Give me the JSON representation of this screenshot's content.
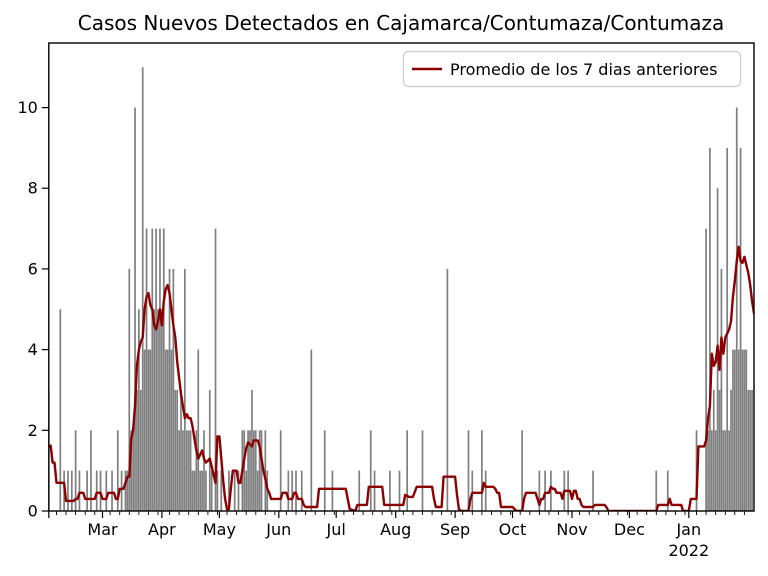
{
  "figure": {
    "title": "Casos Nuevos Detectados en Cajamarca/Contumaza/Contumaza"
  },
  "chart_data": {
    "type": "bar",
    "title": "Casos Nuevos Detectados en Cajamarca/Contumaza/Contumaza",
    "legend": {
      "label": "Promedio de los 7 dias anteriores",
      "position": "upper right",
      "line_color": "#8B0000"
    },
    "bar_color": "#7f7f7f",
    "axis_color": "#000000",
    "x_unit": "days",
    "x_axis_note": "daily bars, left edge = early Feb 2021, right edge = early Feb 2022",
    "x_total_days": 368,
    "ylim": [
      0,
      11.6
    ],
    "yticks": [
      0,
      2,
      4,
      6,
      8,
      10
    ],
    "grid": false,
    "month_start_days": [
      0,
      28,
      59,
      89,
      120,
      150,
      181,
      212,
      242,
      273,
      303,
      334,
      365
    ],
    "month_ticks": [
      {
        "day": 28,
        "label": "Mar"
      },
      {
        "day": 59,
        "label": "Apr"
      },
      {
        "day": 89,
        "label": "May"
      },
      {
        "day": 120,
        "label": "Jun"
      },
      {
        "day": 150,
        "label": "Jul"
      },
      {
        "day": 181,
        "label": "Aug"
      },
      {
        "day": 212,
        "label": "Sep"
      },
      {
        "day": 242,
        "label": "Oct"
      },
      {
        "day": 273,
        "label": "Nov"
      },
      {
        "day": 303,
        "label": "Dec"
      },
      {
        "day": 334,
        "label": "Jan",
        "sublabel": "2022"
      }
    ],
    "minor_tick_day_offsets": [
      4,
      9,
      14,
      19,
      24,
      29
    ],
    "bars_daily_cases": {
      "0": 3,
      "6": 5,
      "8": 1,
      "10": 1,
      "12": 1,
      "14": 2,
      "16": 1,
      "20": 1,
      "22": 2,
      "25": 1,
      "27": 1,
      "30": 1,
      "33": 1,
      "36": 2,
      "38": 1,
      "40": 1,
      "41": 1,
      "42": 6,
      "43": 2,
      "44": 2,
      "45": 10,
      "46": 3,
      "47": 5,
      "48": 3,
      "49": 11,
      "50": 4,
      "51": 7,
      "52": 4,
      "53": 4,
      "54": 7,
      "55": 5,
      "56": 7,
      "57": 5,
      "58": 7,
      "59": 5,
      "60": 7,
      "61": 4,
      "62": 4,
      "63": 6,
      "64": 4,
      "65": 6,
      "66": 3,
      "67": 3,
      "68": 2,
      "69": 3,
      "70": 2,
      "71": 6,
      "72": 2,
      "73": 2,
      "74": 2,
      "75": 1,
      "76": 1,
      "77": 2,
      "78": 4,
      "79": 1,
      "80": 1,
      "81": 2,
      "82": 1,
      "84": 3,
      "85": 1,
      "87": 7,
      "88": 1,
      "90": 1,
      "94": 1,
      "97": 1,
      "99": 1,
      "101": 2,
      "102": 2,
      "103": 1,
      "104": 2,
      "105": 2,
      "106": 3,
      "107": 2,
      "108": 2,
      "109": 1,
      "110": 2,
      "111": 2,
      "113": 2,
      "114": 1,
      "121": 2,
      "125": 1,
      "127": 1,
      "129": 1,
      "132": 1,
      "137": 4,
      "144": 2,
      "148": 1,
      "162": 1,
      "168": 2,
      "170": 1,
      "178": 1,
      "183": 1,
      "187": 2,
      "195": 2,
      "208": 6,
      "219": 2,
      "221": 1,
      "226": 2,
      "228": 1,
      "247": 2,
      "256": 1,
      "259": 1,
      "262": 1,
      "269": 1,
      "271": 1,
      "284": 1,
      "317": 1,
      "323": 1,
      "338": 2,
      "343": 7,
      "344": 2,
      "345": 9,
      "346": 2,
      "347": 3,
      "348": 2,
      "349": 8,
      "350": 3,
      "351": 6,
      "352": 2,
      "353": 2,
      "354": 9,
      "355": 2,
      "356": 3,
      "357": 4,
      "358": 4,
      "359": 10,
      "360": 4,
      "361": 9,
      "362": 4,
      "363": 4,
      "364": 4,
      "365": 3,
      "366": 3,
      "367": 3
    },
    "avg_7day_line": [
      [
        0,
        1.6
      ],
      [
        1,
        1.62
      ],
      [
        2,
        1.2
      ],
      [
        3,
        1.2
      ],
      [
        4,
        0.7
      ],
      [
        8,
        0.7
      ],
      [
        9,
        0.25
      ],
      [
        13,
        0.25
      ],
      [
        14,
        0.3
      ],
      [
        15,
        0.3
      ],
      [
        16,
        0.45
      ],
      [
        18,
        0.45
      ],
      [
        19,
        0.3
      ],
      [
        24,
        0.3
      ],
      [
        25,
        0.45
      ],
      [
        27,
        0.45
      ],
      [
        28,
        0.3
      ],
      [
        30,
        0.3
      ],
      [
        31,
        0.45
      ],
      [
        34,
        0.45
      ],
      [
        35,
        0.3
      ],
      [
        36,
        0.3
      ],
      [
        37,
        0.55
      ],
      [
        39,
        0.55
      ],
      [
        40,
        0.7
      ],
      [
        41,
        0.85
      ],
      [
        42,
        0.85
      ],
      [
        43,
        1.8
      ],
      [
        44,
        2.0
      ],
      [
        45,
        2.6
      ],
      [
        46,
        3.6
      ],
      [
        47,
        4.0
      ],
      [
        48,
        4.2
      ],
      [
        49,
        4.3
      ],
      [
        50,
        5.0
      ],
      [
        51,
        5.3
      ],
      [
        52,
        5.4
      ],
      [
        53,
        5.1
      ],
      [
        54,
        5.0
      ],
      [
        55,
        4.6
      ],
      [
        56,
        4.5
      ],
      [
        57,
        4.7
      ],
      [
        58,
        5.0
      ],
      [
        59,
        4.6
      ],
      [
        60,
        5.2
      ],
      [
        61,
        5.5
      ],
      [
        62,
        5.6
      ],
      [
        63,
        5.4
      ],
      [
        64,
        5.0
      ],
      [
        65,
        4.6
      ],
      [
        66,
        4.3
      ],
      [
        67,
        3.7
      ],
      [
        68,
        3.3
      ],
      [
        69,
        2.9
      ],
      [
        70,
        2.6
      ],
      [
        71,
        2.3
      ],
      [
        72,
        2.4
      ],
      [
        73,
        2.3
      ],
      [
        74,
        2.3
      ],
      [
        75,
        2.1
      ],
      [
        76,
        1.8
      ],
      [
        77,
        1.5
      ],
      [
        78,
        1.3
      ],
      [
        79,
        1.4
      ],
      [
        80,
        1.5
      ],
      [
        81,
        1.3
      ],
      [
        82,
        1.2
      ],
      [
        84,
        1.3
      ],
      [
        85,
        1.1
      ],
      [
        86,
        0.9
      ],
      [
        87,
        0.7
      ],
      [
        88,
        1.85
      ],
      [
        89,
        1.85
      ],
      [
        90,
        1.3
      ],
      [
        91,
        0.75
      ],
      [
        92,
        0.3
      ],
      [
        93,
        0.05
      ],
      [
        94,
        0.05
      ],
      [
        95,
        0.55
      ],
      [
        96,
        1.0
      ],
      [
        98,
        1.0
      ],
      [
        99,
        0.7
      ],
      [
        100,
        0.7
      ],
      [
        101,
        1.0
      ],
      [
        102,
        1.3
      ],
      [
        103,
        1.55
      ],
      [
        104,
        1.7
      ],
      [
        106,
        1.6
      ],
      [
        107,
        1.75
      ],
      [
        109,
        1.75
      ],
      [
        110,
        1.6
      ],
      [
        111,
        1.3
      ],
      [
        112,
        1.0
      ],
      [
        113,
        0.8
      ],
      [
        114,
        0.55
      ],
      [
        115,
        0.45
      ],
      [
        116,
        0.3
      ],
      [
        121,
        0.3
      ],
      [
        122,
        0.45
      ],
      [
        124,
        0.45
      ],
      [
        125,
        0.3
      ],
      [
        127,
        0.3
      ],
      [
        128,
        0.45
      ],
      [
        129,
        0.45
      ],
      [
        130,
        0.3
      ],
      [
        132,
        0.3
      ],
      [
        133,
        0.15
      ],
      [
        134,
        0.1
      ],
      [
        140,
        0.1
      ],
      [
        141,
        0.55
      ],
      [
        155,
        0.55
      ],
      [
        156,
        0.3
      ],
      [
        157,
        0.05
      ],
      [
        160,
        0
      ],
      [
        161,
        0.15
      ],
      [
        166,
        0.15
      ],
      [
        167,
        0.6
      ],
      [
        174,
        0.6
      ],
      [
        175,
        0.15
      ],
      [
        185,
        0.15
      ],
      [
        186,
        0.4
      ],
      [
        188,
        0.35
      ],
      [
        190,
        0.35
      ],
      [
        192,
        0.6
      ],
      [
        200,
        0.6
      ],
      [
        201,
        0.3
      ],
      [
        202,
        0.1
      ],
      [
        205,
        0.1
      ],
      [
        206,
        0.85
      ],
      [
        212,
        0.85
      ],
      [
        213,
        0.4
      ],
      [
        214,
        0.05
      ],
      [
        215,
        0
      ],
      [
        219,
        0
      ],
      [
        220,
        0.3
      ],
      [
        221,
        0.45
      ],
      [
        226,
        0.45
      ],
      [
        227,
        0.7
      ],
      [
        228,
        0.6
      ],
      [
        232,
        0.6
      ],
      [
        233,
        0.55
      ],
      [
        234,
        0.45
      ],
      [
        235,
        0.45
      ],
      [
        236,
        0.1
      ],
      [
        242,
        0.1
      ],
      [
        243,
        0.05
      ],
      [
        244,
        0
      ],
      [
        247,
        0
      ],
      [
        248,
        0.3
      ],
      [
        249,
        0.45
      ],
      [
        254,
        0.45
      ],
      [
        255,
        0.3
      ],
      [
        256,
        0.15
      ],
      [
        257,
        0.3
      ],
      [
        258,
        0.3
      ],
      [
        259,
        0.45
      ],
      [
        261,
        0.45
      ],
      [
        262,
        0.6
      ],
      [
        263,
        0.55
      ],
      [
        264,
        0.55
      ],
      [
        265,
        0.45
      ],
      [
        267,
        0.45
      ],
      [
        268,
        0.3
      ],
      [
        269,
        0.5
      ],
      [
        272,
        0.5
      ],
      [
        273,
        0.3
      ],
      [
        274,
        0.5
      ],
      [
        275,
        0.5
      ],
      [
        276,
        0.3
      ],
      [
        277,
        0.3
      ],
      [
        278,
        0.15
      ],
      [
        279,
        0.1
      ],
      [
        284,
        0.1
      ],
      [
        285,
        0.15
      ],
      [
        290,
        0.15
      ],
      [
        291,
        0.1
      ],
      [
        292,
        0
      ],
      [
        317,
        0
      ],
      [
        318,
        0.15
      ],
      [
        323,
        0.15
      ],
      [
        324,
        0.3
      ],
      [
        325,
        0.15
      ],
      [
        330,
        0.15
      ],
      [
        331,
        0
      ],
      [
        334,
        0
      ],
      [
        335,
        0.3
      ],
      [
        338,
        0.3
      ],
      [
        339,
        1.6
      ],
      [
        342,
        1.6
      ],
      [
        343,
        1.75
      ],
      [
        344,
        2.3
      ],
      [
        345,
        2.6
      ],
      [
        346,
        3.9
      ],
      [
        347,
        3.6
      ],
      [
        348,
        3.7
      ],
      [
        349,
        4.1
      ],
      [
        350,
        3.5
      ],
      [
        351,
        4.3
      ],
      [
        352,
        3.9
      ],
      [
        353,
        4.3
      ],
      [
        354,
        4.4
      ],
      [
        355,
        4.5
      ],
      [
        356,
        4.7
      ],
      [
        357,
        5.3
      ],
      [
        358,
        5.7
      ],
      [
        359,
        6.2
      ],
      [
        360,
        6.55
      ],
      [
        361,
        6.2
      ],
      [
        362,
        6.15
      ],
      [
        363,
        6.3
      ],
      [
        364,
        6.1
      ],
      [
        365,
        5.9
      ],
      [
        366,
        5.6
      ],
      [
        367,
        5.2
      ],
      [
        368,
        4.9
      ]
    ]
  }
}
